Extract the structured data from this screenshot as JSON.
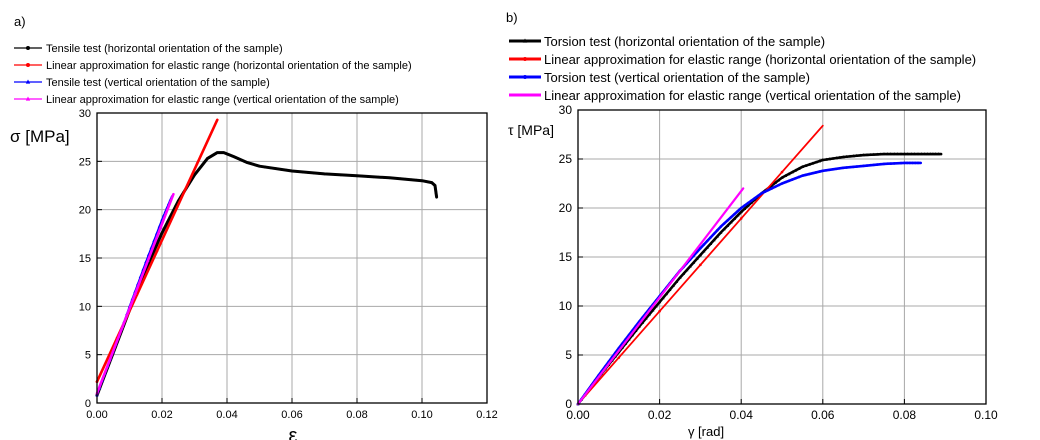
{
  "chart_data": [
    {
      "panel_label": "a)",
      "type": "line",
      "xlabel": "ε",
      "ylabel": "σ [MPa]",
      "xlim": [
        0,
        0.12
      ],
      "ylim": [
        0,
        30
      ],
      "xticks": [
        "0.00",
        "0.02",
        "0.04",
        "0.06",
        "0.08",
        "0.10",
        "0.12"
      ],
      "yticks": [
        "0",
        "5",
        "10",
        "15",
        "20",
        "25",
        "30"
      ],
      "grid": true,
      "legend_position": "top-left",
      "series": [
        {
          "name": "Tensile test (horizontal orientation of the sample)",
          "color": "#000000",
          "marker": "circle",
          "x": [
            0.0,
            0.005,
            0.01,
            0.015,
            0.02,
            0.025,
            0.03,
            0.034,
            0.037,
            0.039,
            0.042,
            0.046,
            0.05,
            0.06,
            0.07,
            0.08,
            0.09,
            0.1,
            0.103,
            0.104,
            0.1045
          ],
          "y": [
            0.8,
            5.2,
            9.6,
            13.8,
            17.6,
            20.9,
            23.6,
            25.3,
            25.9,
            25.9,
            25.5,
            24.9,
            24.5,
            24.0,
            23.7,
            23.5,
            23.3,
            23.0,
            22.8,
            22.5,
            21.3
          ]
        },
        {
          "name": "Linear approximation for elastic range (horizontal orientation of the sample)",
          "color": "#ff0000",
          "marker": "circle",
          "x": [
            0.0,
            0.037
          ],
          "y": [
            2.2,
            29.3
          ]
        },
        {
          "name": "Tensile test (vertical orientation of the sample)",
          "color": "#0000ff",
          "marker": "triangle",
          "x": [
            0.0,
            0.005,
            0.01,
            0.015,
            0.02,
            0.023
          ],
          "y": [
            0.8,
            5.3,
            10.0,
            14.6,
            19.0,
            21.4
          ]
        },
        {
          "name": "Linear approximation for elastic range (vertical orientation of the sample)",
          "color": "#ff00ff",
          "marker": "triangle",
          "x": [
            0.0,
            0.0235
          ],
          "y": [
            1.0,
            21.6
          ]
        }
      ]
    },
    {
      "panel_label": "b)",
      "type": "line",
      "xlabel": "γ [rad]",
      "ylabel": "τ [MPa]",
      "xlim": [
        0,
        0.1
      ],
      "ylim": [
        0,
        30
      ],
      "xticks": [
        "0.00",
        "0.02",
        "0.04",
        "0.06",
        "0.08",
        "0.10"
      ],
      "yticks": [
        "0",
        "5",
        "10",
        "15",
        "20",
        "25",
        "30"
      ],
      "grid": true,
      "legend_position": "top-left",
      "series": [
        {
          "name": "Torsion test (horizontal orientation of the sample)",
          "color": "#000000",
          "marker": "triangle",
          "x": [
            0.0,
            0.005,
            0.01,
            0.015,
            0.02,
            0.025,
            0.03,
            0.035,
            0.04,
            0.045,
            0.05,
            0.055,
            0.06,
            0.065,
            0.07,
            0.075,
            0.08,
            0.085,
            0.089
          ],
          "y": [
            0.0,
            2.7,
            5.3,
            7.9,
            10.4,
            12.9,
            15.2,
            17.5,
            19.6,
            21.5,
            23.1,
            24.2,
            24.9,
            25.2,
            25.4,
            25.5,
            25.5,
            25.5,
            25.5
          ]
        },
        {
          "name": "Linear approximation for elastic range (horizontal orientation of the sample)",
          "color": "#ff0000",
          "marker": "circle",
          "x": [
            0.0,
            0.06
          ],
          "y": [
            0.0,
            28.4
          ]
        },
        {
          "name": "Torsion test (vertical orientation of the sample)",
          "color": "#0000ff",
          "marker": "circle",
          "x": [
            0.0,
            0.005,
            0.01,
            0.015,
            0.02,
            0.025,
            0.03,
            0.035,
            0.04,
            0.045,
            0.05,
            0.055,
            0.06,
            0.065,
            0.07,
            0.075,
            0.08,
            0.084
          ],
          "y": [
            0.0,
            2.9,
            5.7,
            8.4,
            11.0,
            13.6,
            15.9,
            18.1,
            20.0,
            21.5,
            22.5,
            23.3,
            23.8,
            24.1,
            24.3,
            24.5,
            24.6,
            24.6
          ]
        },
        {
          "name": "Linear approximation for elastic range (vertical orientation of the sample)",
          "color": "#ff00ff",
          "marker": "none",
          "x": [
            0.0,
            0.0405
          ],
          "y": [
            0.0,
            22.0
          ]
        }
      ]
    }
  ]
}
